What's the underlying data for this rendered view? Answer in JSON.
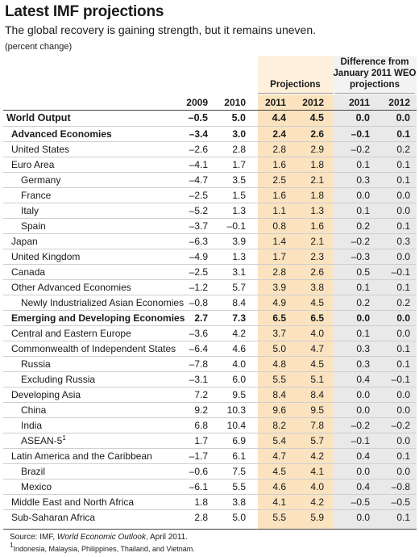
{
  "title": "Latest IMF projections",
  "subtitle": "The global recovery is gaining strength, but it remains uneven.",
  "unit": "(percent change)",
  "groups": {
    "projections": "Projections",
    "difference": [
      "Difference from",
      "January 2011 WEO",
      "projections"
    ]
  },
  "columns": [
    "2009",
    "2010",
    "2011",
    "2012",
    "2011",
    "2012"
  ],
  "rows": [
    {
      "label": "World Output",
      "values": [
        "–0.5",
        "5.0",
        "4.4",
        "4.5",
        "0.0",
        "0.0"
      ]
    },
    {
      "label": "Advanced Economies",
      "values": [
        "–3.4",
        "3.0",
        "2.4",
        "2.6",
        "–0.1",
        "0.1"
      ]
    },
    {
      "label": "United States",
      "values": [
        "–2.6",
        "2.8",
        "2.8",
        "2.9",
        "–0.2",
        "0.2"
      ]
    },
    {
      "label": "Euro Area",
      "values": [
        "–4.1",
        "1.7",
        "1.6",
        "1.8",
        "0.1",
        "0.1"
      ]
    },
    {
      "label": "Germany",
      "values": [
        "–4.7",
        "3.5",
        "2.5",
        "2.1",
        "0.3",
        "0.1"
      ]
    },
    {
      "label": "France",
      "values": [
        "–2.5",
        "1.5",
        "1.6",
        "1.8",
        "0.0",
        "0.0"
      ]
    },
    {
      "label": "Italy",
      "values": [
        "–5.2",
        "1.3",
        "1.1",
        "1.3",
        "0.1",
        "0.0"
      ]
    },
    {
      "label": "Spain",
      "values": [
        "–3.7",
        "–0.1",
        "0.8",
        "1.6",
        "0.2",
        "0.1"
      ]
    },
    {
      "label": "Japan",
      "values": [
        "–6.3",
        "3.9",
        "1.4",
        "2.1",
        "–0.2",
        "0.3"
      ]
    },
    {
      "label": "United Kingdom",
      "values": [
        "–4.9",
        "1.3",
        "1.7",
        "2.3",
        "–0.3",
        "0.0"
      ]
    },
    {
      "label": "Canada",
      "values": [
        "–2.5",
        "3.1",
        "2.8",
        "2.6",
        "0.5",
        "–0.1"
      ]
    },
    {
      "label": "Other Advanced Economies",
      "values": [
        "–1.2",
        "5.7",
        "3.9",
        "3.8",
        "0.1",
        "0.1"
      ]
    },
    {
      "label": "Newly Industrialized Asian Economies",
      "values": [
        "–0.8",
        "8.4",
        "4.9",
        "4.5",
        "0.2",
        "0.2"
      ]
    },
    {
      "label": "Emerging and Developing Economies",
      "values": [
        "2.7",
        "7.3",
        "6.5",
        "6.5",
        "0.0",
        "0.0"
      ]
    },
    {
      "label": "Central and Eastern Europe",
      "values": [
        "–3.6",
        "4.2",
        "3.7",
        "4.0",
        "0.1",
        "0.0"
      ]
    },
    {
      "label": "Commonwealth of Independent States",
      "values": [
        "–6.4",
        "4.6",
        "5.0",
        "4.7",
        "0.3",
        "0.1"
      ]
    },
    {
      "label": "Russia",
      "values": [
        "–7.8",
        "4.0",
        "4.8",
        "4.5",
        "0.3",
        "0.1"
      ]
    },
    {
      "label": "Excluding Russia",
      "values": [
        "–3.1",
        "6.0",
        "5.5",
        "5.1",
        "0.4",
        "–0.1"
      ]
    },
    {
      "label": "Developing Asia",
      "values": [
        "7.2",
        "9.5",
        "8.4",
        "8.4",
        "0.0",
        "0.0"
      ]
    },
    {
      "label": "China",
      "values": [
        "9.2",
        "10.3",
        "9.6",
        "9.5",
        "0.0",
        "0.0"
      ]
    },
    {
      "label": "India",
      "values": [
        "6.8",
        "10.4",
        "8.2",
        "7.8",
        "–0.2",
        "–0.2"
      ]
    },
    {
      "label": "ASEAN-5",
      "sup": "1",
      "values": [
        "1.7",
        "6.9",
        "5.4",
        "5.7",
        "–0.1",
        "0.0"
      ]
    },
    {
      "label": "Latin America and the Caribbean",
      "values": [
        "–1.7",
        "6.1",
        "4.7",
        "4.2",
        "0.4",
        "0.1"
      ]
    },
    {
      "label": "Brazil",
      "values": [
        "–0.6",
        "7.5",
        "4.5",
        "4.1",
        "0.0",
        "0.0"
      ]
    },
    {
      "label": "Mexico",
      "values": [
        "–6.1",
        "5.5",
        "4.6",
        "4.0",
        "0.4",
        "–0.8"
      ]
    },
    {
      "label": "Middle East and North Africa",
      "values": [
        "1.8",
        "3.8",
        "4.1",
        "4.2",
        "–0.5",
        "–0.5"
      ]
    },
    {
      "label": "Sub-Saharan Africa",
      "values": [
        "2.8",
        "5.0",
        "5.5",
        "5.9",
        "0.0",
        "0.1"
      ]
    }
  ],
  "source": {
    "prefix": "Source: IMF, ",
    "publication": "World Economic Outlook",
    "suffix": ", April 2011."
  },
  "footnote": {
    "mark": "1",
    "text": "Indonesia, Malaysia, Philippines, Thailand, and Vietnam."
  },
  "colors": {
    "projection_shade": "#fbe3c0",
    "difference_shade": "#e9e9e9"
  }
}
